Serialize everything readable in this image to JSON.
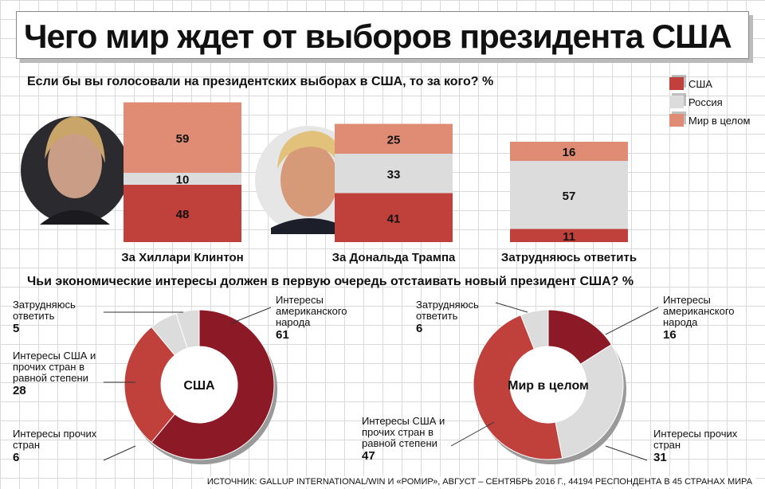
{
  "title": "Чего мир ждет от выборов президента США",
  "bar_question": "Если бы вы голосовали на президентских выборах в США, то за кого? %",
  "legend": [
    {
      "label": "США",
      "color": "#c0403c"
    },
    {
      "label": "Россия",
      "color": "#dcdcdc"
    },
    {
      "label": "Мир в целом",
      "color": "#e08c74"
    }
  ],
  "pie_question": "Чьи экономические интересы должен в первую очередь отстаивать новый президент США? %",
  "footer": "ИСТОЧНИК: GALLUP INTERNATIONAL/WIN И «РОМИР», АВГУСТ – СЕНТЯБРЬ 2016 Г., 44194 РЕСПОНДЕНТА В 45 СТРАНАХ МИРА",
  "chart_data": [
    {
      "type": "bar",
      "title": "Если бы вы голосовали на президентских выборах в США, то за кого? %",
      "categories": [
        "За Хиллари Клинтон",
        "За Дональда Трампа",
        "Затрудняюсь ответить"
      ],
      "series": [
        {
          "name": "США",
          "values": [
            48,
            41,
            11
          ]
        },
        {
          "name": "Россия",
          "values": [
            10,
            33,
            57
          ]
        },
        {
          "name": "Мир в целом",
          "values": [
            59,
            25,
            16
          ]
        }
      ],
      "stacked": true,
      "legend_position": "top-right"
    },
    {
      "type": "pie",
      "title": "США",
      "labels": [
        "Интересы американского народа",
        "Интересы США и прочих стран в равной степени",
        "Интересы прочих стран",
        "Затрудняюсь ответить"
      ],
      "values": [
        61,
        28,
        6,
        5
      ],
      "colors": [
        "#8c1a26",
        "#c0403c",
        "#dcdcdc",
        "#dcdcdc"
      ],
      "annotations": [
        {
          "text": "Интересы американского народа",
          "value": "61"
        },
        {
          "text": "Затрудняюсь ответить",
          "value": "5"
        },
        {
          "text": "Интересы США и прочих стран в равной степени",
          "value": "28"
        },
        {
          "text": "Интересы прочих стран",
          "value": "6"
        }
      ]
    },
    {
      "type": "pie",
      "title": "Мир в целом",
      "labels": [
        "Интересы американского народа",
        "Интересы прочих стран",
        "Интересы США и прочих стран в равной степени",
        "Затрудняюсь ответить"
      ],
      "values": [
        16,
        31,
        47,
        6
      ],
      "colors": [
        "#8c1a26",
        "#dcdcdc",
        "#c0403c",
        "#dcdcdc"
      ],
      "annotations": [
        {
          "text": "Интересы американского народа",
          "value": "16"
        },
        {
          "text": "Затрудняюсь ответить",
          "value": "6"
        },
        {
          "text": "Интересы США и прочих стран в равной степени",
          "value": "47"
        },
        {
          "text": "Интересы прочих стран",
          "value": "31"
        }
      ]
    }
  ]
}
